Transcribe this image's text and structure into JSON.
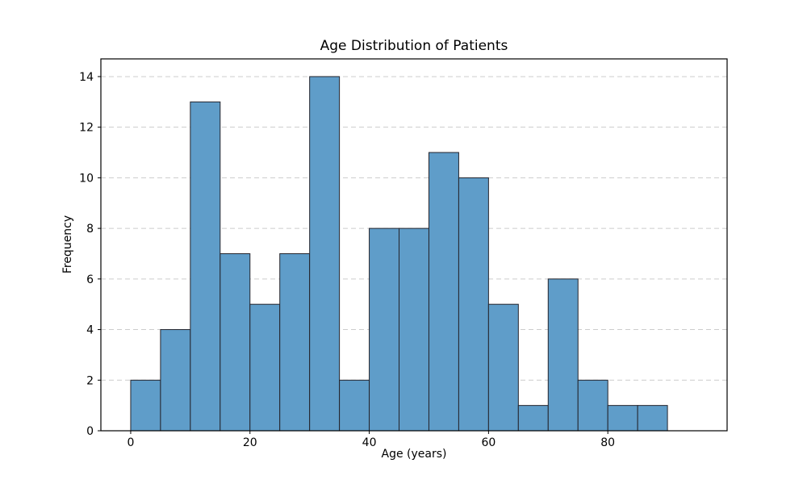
{
  "chart_data": {
    "type": "bar",
    "subtype": "histogram",
    "title": "Age Distribution of Patients",
    "xlabel": "Age (years)",
    "ylabel": "Frequency",
    "bin_edges": [
      0,
      5,
      10,
      15,
      20,
      25,
      30,
      35,
      40,
      45,
      50,
      55,
      60,
      65,
      70,
      75,
      80,
      85,
      90
    ],
    "counts": [
      2,
      4,
      13,
      7,
      5,
      7,
      14,
      2,
      8,
      8,
      11,
      10,
      5,
      1,
      6,
      2,
      1,
      1
    ],
    "x_ticks": [
      0,
      20,
      40,
      60,
      80
    ],
    "y_ticks": [
      0,
      2,
      4,
      6,
      8,
      10,
      12,
      14
    ],
    "xlim": [
      -5,
      100
    ],
    "ylim": [
      0,
      14.7
    ],
    "grid": {
      "axis": "y",
      "style": "dashed",
      "on": true
    },
    "legend": {
      "visible": false
    },
    "colors": {
      "bar_fill": "#5f9dc9",
      "bar_edge": "#24242c",
      "grid_line": "#cccccc",
      "spine": "#000000",
      "text": "#000000",
      "background": "#ffffff"
    }
  }
}
